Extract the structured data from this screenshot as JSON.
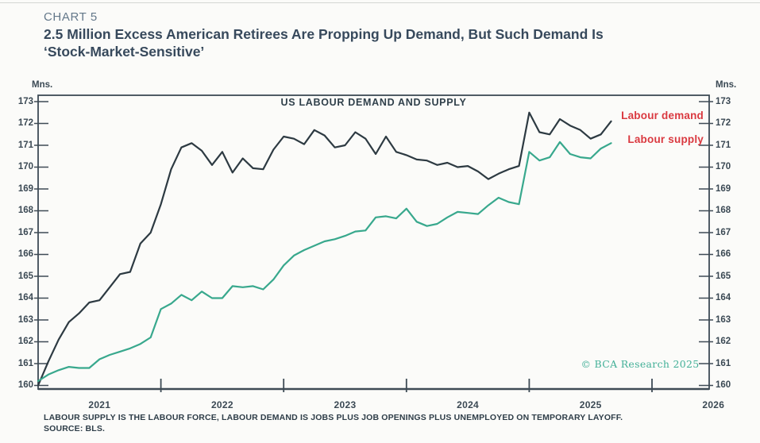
{
  "header": {
    "kicker": "CHART 5",
    "title_line1": "2.5 Million Excess American Retirees Are Propping Up Demand, But Such Demand Is",
    "title_line2": "‘Stock-Market-Sensitive’"
  },
  "chart_data": {
    "type": "line",
    "title": "US LABOUR DEMAND AND SUPPLY",
    "unit_label_left": "Mns.",
    "unit_label_right": "Mns.",
    "x_start": "2021-01",
    "x_end_axis": "2026-07",
    "x_year_labels": [
      "2021",
      "2022",
      "2023",
      "2024",
      "2025",
      "2026"
    ],
    "ylim": [
      160,
      173
    ],
    "y_tick_step": 1,
    "grid": false,
    "legend_position": "top-right",
    "axis_color": "#3e4b55",
    "months_per_point": 1,
    "series": [
      {
        "name": "Labour demand",
        "color": "#2d3a42",
        "values": [
          160.0,
          161.1,
          162.1,
          162.9,
          163.3,
          163.8,
          163.9,
          164.5,
          165.1,
          165.2,
          166.5,
          167.0,
          168.3,
          169.9,
          170.9,
          171.1,
          170.75,
          170.1,
          170.7,
          169.75,
          170.4,
          169.95,
          169.9,
          170.8,
          171.4,
          171.3,
          171.05,
          171.7,
          171.45,
          170.9,
          171.0,
          171.6,
          171.3,
          170.6,
          171.4,
          170.7,
          170.55,
          170.35,
          170.3,
          170.1,
          170.2,
          170.0,
          170.05,
          169.8,
          169.45,
          169.7,
          169.9,
          170.05,
          172.5,
          171.6,
          171.5,
          172.2,
          171.9,
          171.7,
          171.3,
          171.5,
          172.1
        ]
      },
      {
        "name": "Labour supply",
        "color": "#38a88d",
        "values": [
          160.2,
          160.5,
          160.7,
          160.85,
          160.8,
          160.8,
          161.2,
          161.4,
          161.55,
          161.7,
          161.9,
          162.2,
          163.5,
          163.75,
          164.15,
          163.9,
          164.3,
          164.0,
          164.0,
          164.55,
          164.5,
          164.55,
          164.4,
          164.85,
          165.5,
          165.95,
          166.2,
          166.4,
          166.6,
          166.7,
          166.85,
          167.05,
          167.1,
          167.7,
          167.75,
          167.65,
          168.1,
          167.5,
          167.3,
          167.4,
          167.7,
          167.95,
          167.9,
          167.85,
          168.25,
          168.6,
          168.4,
          168.3,
          170.7,
          170.3,
          170.45,
          171.15,
          170.6,
          170.45,
          170.4,
          170.85,
          171.1
        ]
      }
    ],
    "legend_label_color": "#da3940",
    "copyright": "© BCA Research 2025"
  },
  "footnote": {
    "line1": "LABOUR SUPPLY IS THE LABOUR FORCE, LABOUR DEMAND IS JOBS PLUS JOB OPENINGS PLUS UNEMPLOYED ON TEMPORARY LAYOFF.",
    "line2": "SOURCE: BLS."
  }
}
